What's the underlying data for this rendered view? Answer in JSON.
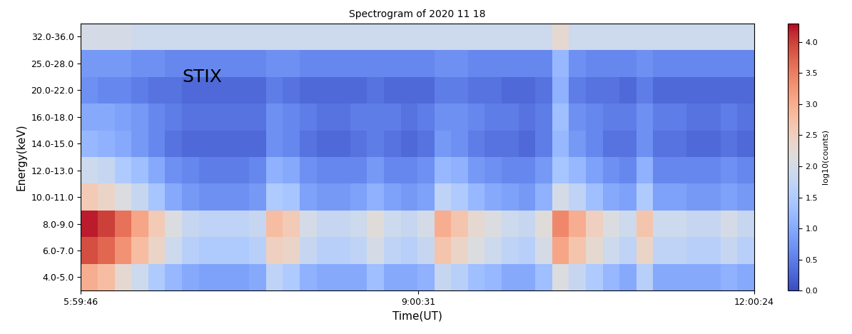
{
  "chart_data": {
    "type": "heatmap",
    "title": "Spectrogram of 2020 11 18",
    "x_label": "Time(UT)",
    "y_label": "Energy(keV)",
    "annotation": "STIX",
    "color": "coolwarm",
    "categories": [
      "4.0-5.0",
      "6.0-7.0",
      "8.0-9.0",
      "10.0-11.0",
      "12.0-13.0",
      "14.0-15.0",
      "16.0-18.0",
      "20.0-22.0",
      "25.0-28.0",
      "32.0-36.0"
    ],
    "x_edges": [
      21586,
      22127,
      22668,
      23209,
      23750,
      24291,
      24832,
      25373,
      25914,
      26455,
      26996,
      27537,
      28078,
      28619,
      29160,
      29701,
      30242,
      30783,
      31324,
      31865,
      32406,
      32947,
      33488,
      34029,
      34570,
      35111,
      35652,
      36193,
      36734,
      37275,
      37816,
      38357,
      38898,
      39439,
      39980,
      40521,
      41062,
      41603,
      42144,
      42685,
      43224
    ],
    "xlim": [
      21586,
      43224
    ],
    "xticks": [
      {
        "value": 21586,
        "label": "5:59:46"
      },
      {
        "value": 32431,
        "label": "9:00:31"
      },
      {
        "value": 43224,
        "label": "12:00:24"
      }
    ],
    "cells": [
      [
        3.0,
        2.8,
        2.3,
        1.9,
        1.5,
        1.2,
        1.0,
        0.9,
        0.9,
        0.9,
        1.0,
        1.7,
        1.5,
        1.1,
        1.0,
        1.0,
        1.0,
        1.3,
        1.0,
        1.0,
        1.1,
        1.8,
        1.6,
        1.3,
        1.2,
        1.0,
        1.0,
        1.3,
        2.1,
        1.8,
        1.5,
        1.2,
        1.0,
        1.6,
        1.0,
        1.0,
        1.0,
        1.0,
        1.1,
        1.0
      ],
      [
        3.9,
        3.7,
        3.3,
        2.8,
        2.4,
        1.9,
        1.6,
        1.5,
        1.5,
        1.5,
        1.6,
        2.5,
        2.4,
        1.8,
        1.6,
        1.6,
        1.7,
        2.0,
        1.7,
        1.6,
        1.8,
        2.7,
        2.4,
        2.1,
        1.9,
        1.7,
        1.6,
        2.0,
        3.1,
        2.7,
        2.3,
        1.9,
        1.7,
        2.4,
        1.7,
        1.7,
        1.6,
        1.6,
        1.8,
        1.6
      ],
      [
        4.2,
        4.0,
        3.6,
        3.1,
        2.6,
        2.1,
        1.8,
        1.7,
        1.7,
        1.7,
        1.8,
        2.8,
        2.6,
        2.0,
        1.8,
        1.8,
        1.9,
        2.2,
        1.9,
        1.8,
        2.0,
        3.0,
        2.7,
        2.3,
        2.1,
        1.9,
        1.8,
        2.2,
        3.4,
        3.0,
        2.5,
        2.1,
        1.9,
        2.7,
        1.9,
        1.9,
        1.8,
        1.8,
        2.0,
        1.8
      ],
      [
        2.6,
        2.4,
        2.1,
        1.8,
        1.4,
        1.0,
        0.8,
        0.7,
        0.7,
        0.7,
        0.8,
        1.5,
        1.4,
        0.9,
        0.8,
        0.8,
        0.9,
        1.1,
        0.9,
        0.8,
        0.9,
        1.7,
        1.5,
        1.2,
        1.0,
        0.9,
        0.8,
        1.1,
        2.0,
        1.7,
        1.3,
        1.0,
        0.9,
        1.5,
        0.9,
        0.9,
        0.8,
        0.8,
        0.9,
        0.8
      ],
      [
        1.9,
        1.8,
        1.5,
        1.3,
        1.0,
        0.7,
        0.6,
        0.5,
        0.5,
        0.5,
        0.6,
        1.1,
        1.0,
        0.7,
        0.6,
        0.6,
        0.6,
        0.8,
        0.6,
        0.6,
        0.7,
        1.2,
        1.1,
        0.8,
        0.7,
        0.6,
        0.6,
        0.8,
        1.4,
        1.2,
        0.9,
        0.7,
        0.6,
        1.1,
        0.6,
        0.6,
        0.6,
        0.6,
        0.7,
        0.6
      ],
      [
        1.2,
        1.1,
        1.0,
        0.8,
        0.6,
        0.4,
        0.3,
        0.3,
        0.3,
        0.3,
        0.3,
        0.7,
        0.6,
        0.4,
        0.3,
        0.3,
        0.4,
        0.5,
        0.4,
        0.3,
        0.4,
        0.8,
        0.7,
        0.5,
        0.4,
        0.4,
        0.3,
        0.5,
        1.2,
        0.8,
        0.6,
        0.4,
        0.4,
        0.7,
        0.4,
        0.4,
        0.3,
        0.3,
        0.4,
        0.3
      ],
      [
        1.0,
        1.0,
        0.9,
        0.8,
        0.6,
        0.5,
        0.4,
        0.4,
        0.4,
        0.4,
        0.4,
        0.7,
        0.6,
        0.5,
        0.4,
        0.4,
        0.5,
        0.5,
        0.5,
        0.4,
        0.5,
        0.7,
        0.7,
        0.6,
        0.5,
        0.5,
        0.4,
        0.5,
        1.3,
        0.7,
        0.6,
        0.5,
        0.5,
        0.7,
        0.5,
        0.5,
        0.4,
        0.4,
        0.5,
        0.4
      ],
      [
        0.7,
        0.6,
        0.6,
        0.5,
        0.4,
        0.4,
        0.3,
        0.3,
        0.3,
        0.3,
        0.3,
        0.5,
        0.4,
        0.3,
        0.3,
        0.3,
        0.3,
        0.4,
        0.3,
        0.3,
        0.3,
        0.5,
        0.5,
        0.4,
        0.4,
        0.3,
        0.3,
        0.4,
        1.1,
        0.5,
        0.4,
        0.4,
        0.3,
        0.5,
        0.3,
        0.3,
        0.3,
        0.3,
        0.3,
        0.3
      ],
      [
        0.8,
        0.8,
        0.8,
        0.7,
        0.7,
        0.6,
        0.6,
        0.6,
        0.6,
        0.6,
        0.6,
        0.7,
        0.7,
        0.6,
        0.6,
        0.6,
        0.6,
        0.6,
        0.6,
        0.6,
        0.6,
        0.7,
        0.7,
        0.6,
        0.6,
        0.6,
        0.6,
        0.6,
        1.2,
        0.7,
        0.6,
        0.6,
        0.6,
        0.7,
        0.6,
        0.6,
        0.6,
        0.6,
        0.6,
        0.6
      ],
      [
        2.0,
        2.0,
        2.0,
        1.9,
        1.9,
        1.9,
        1.9,
        1.9,
        1.9,
        1.9,
        1.9,
        1.9,
        1.9,
        1.9,
        1.9,
        1.9,
        1.9,
        1.9,
        1.9,
        1.9,
        1.9,
        1.9,
        1.9,
        1.9,
        1.9,
        1.9,
        1.9,
        1.9,
        2.3,
        1.9,
        1.9,
        1.9,
        1.9,
        1.9,
        1.9,
        1.9,
        1.9,
        1.9,
        1.9,
        1.9
      ]
    ],
    "colorbar": {
      "label": "log10(counts)",
      "range": [
        0,
        4.3
      ],
      "ticks": [
        {
          "value": 0,
          "label": "0.0"
        },
        {
          "value": 0.5,
          "label": "0.5"
        },
        {
          "value": 1,
          "label": "1.0"
        },
        {
          "value": 1.5,
          "label": "1.5"
        },
        {
          "value": 2,
          "label": "2.0"
        },
        {
          "value": 2.5,
          "label": "2.5"
        },
        {
          "value": 3,
          "label": "3.0"
        },
        {
          "value": 3.5,
          "label": "3.5"
        },
        {
          "value": 4,
          "label": "4.0"
        }
      ]
    }
  }
}
